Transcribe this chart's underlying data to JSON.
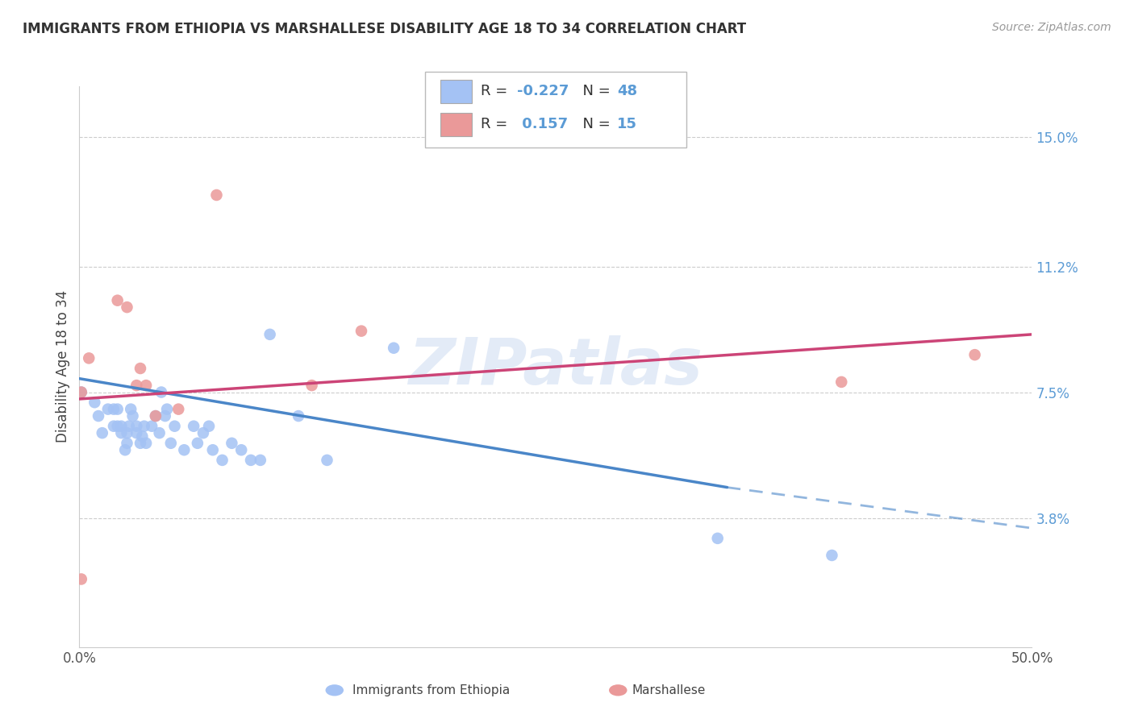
{
  "title": "IMMIGRANTS FROM ETHIOPIA VS MARSHALLESE DISABILITY AGE 18 TO 34 CORRELATION CHART",
  "source": "Source: ZipAtlas.com",
  "ylabel": "Disability Age 18 to 34",
  "ytick_labels": [
    "3.8%",
    "7.5%",
    "11.2%",
    "15.0%"
  ],
  "ytick_vals": [
    0.038,
    0.075,
    0.112,
    0.15
  ],
  "xlim": [
    0.0,
    0.5
  ],
  "ylim": [
    0.0,
    0.165
  ],
  "blue_color": "#a4c2f4",
  "pink_color": "#ea9999",
  "trendline_blue": "#4a86c8",
  "trendline_pink": "#cc4477",
  "watermark_text": "ZIPatlas",
  "ethiopia_x": [
    0.001,
    0.008,
    0.01,
    0.012,
    0.015,
    0.018,
    0.018,
    0.02,
    0.02,
    0.022,
    0.022,
    0.024,
    0.025,
    0.025,
    0.026,
    0.027,
    0.028,
    0.03,
    0.03,
    0.032,
    0.033,
    0.034,
    0.035,
    0.038,
    0.04,
    0.042,
    0.043,
    0.045,
    0.046,
    0.048,
    0.05,
    0.055,
    0.06,
    0.062,
    0.065,
    0.068,
    0.07,
    0.075,
    0.08,
    0.085,
    0.09,
    0.095,
    0.1,
    0.115,
    0.13,
    0.165,
    0.335,
    0.395
  ],
  "ethiopia_y": [
    0.075,
    0.072,
    0.068,
    0.063,
    0.07,
    0.065,
    0.07,
    0.065,
    0.07,
    0.063,
    0.065,
    0.058,
    0.06,
    0.063,
    0.065,
    0.07,
    0.068,
    0.063,
    0.065,
    0.06,
    0.062,
    0.065,
    0.06,
    0.065,
    0.068,
    0.063,
    0.075,
    0.068,
    0.07,
    0.06,
    0.065,
    0.058,
    0.065,
    0.06,
    0.063,
    0.065,
    0.058,
    0.055,
    0.06,
    0.058,
    0.055,
    0.055,
    0.092,
    0.068,
    0.055,
    0.088,
    0.032,
    0.027
  ],
  "marshallese_x": [
    0.001,
    0.001,
    0.005,
    0.02,
    0.025,
    0.03,
    0.032,
    0.035,
    0.04,
    0.052,
    0.072,
    0.122,
    0.148,
    0.4,
    0.47
  ],
  "marshallese_y": [
    0.075,
    0.02,
    0.085,
    0.102,
    0.1,
    0.077,
    0.082,
    0.077,
    0.068,
    0.07,
    0.133,
    0.077,
    0.093,
    0.078,
    0.086
  ],
  "trendline_blue_x0": 0.0,
  "trendline_blue_y0": 0.079,
  "trendline_blue_x1": 0.34,
  "trendline_blue_y1": 0.047,
  "trendline_dash_x0": 0.34,
  "trendline_dash_y0": 0.047,
  "trendline_dash_x1": 0.5,
  "trendline_dash_y1": 0.035,
  "trendline_pink_x0": 0.0,
  "trendline_pink_y0": 0.073,
  "trendline_pink_x1": 0.5,
  "trendline_pink_y1": 0.092
}
